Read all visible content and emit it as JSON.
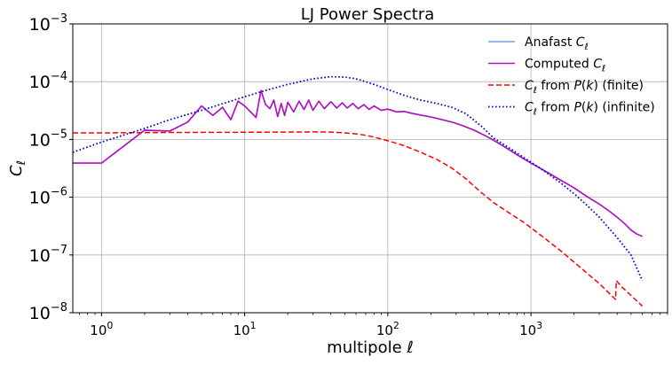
{
  "chart_data": {
    "type": "line",
    "title": "LJ Power Spectra",
    "xlabel": "multipole ℓ",
    "ylabel": "C_ℓ",
    "x_scale": "log",
    "y_scale": "log",
    "xlim": [
      0.63,
      9000
    ],
    "ylim": [
      1e-08,
      0.001
    ],
    "grid": true,
    "legend_position": "top-right",
    "x_ticks": [
      {
        "value": 1,
        "base": "10",
        "exp": "0"
      },
      {
        "value": 10,
        "base": "10",
        "exp": "1"
      },
      {
        "value": 100,
        "base": "10",
        "exp": "2"
      },
      {
        "value": 1000,
        "base": "10",
        "exp": "3"
      }
    ],
    "y_ticks": [
      {
        "value": 1e-08,
        "base": "10",
        "exp": "−8"
      },
      {
        "value": 1e-07,
        "base": "10",
        "exp": "−7"
      },
      {
        "value": 1e-06,
        "base": "10",
        "exp": "−6"
      },
      {
        "value": 1e-05,
        "base": "10",
        "exp": "−5"
      },
      {
        "value": 0.0001,
        "base": "10",
        "exp": "−4"
      },
      {
        "value": 0.001,
        "base": "10",
        "exp": "−3"
      }
    ],
    "series": [
      {
        "name": "Anafast C_ℓ",
        "color": "#6fa3dc",
        "style": "solid",
        "width": 1.5,
        "points": [
          [
            1,
            3.9e-06
          ],
          [
            2,
            1.45e-05
          ],
          [
            3,
            1.4e-05
          ],
          [
            4,
            2e-05
          ],
          [
            5,
            3.8e-05
          ],
          [
            6,
            2.6e-05
          ],
          [
            7,
            3.6e-05
          ],
          [
            8,
            2.2e-05
          ],
          [
            9,
            4.6e-05
          ],
          [
            10,
            3.8e-05
          ],
          [
            11,
            3e-05
          ],
          [
            12,
            2.4e-05
          ],
          [
            13,
            7e-05
          ],
          [
            14,
            4e-05
          ],
          [
            15,
            3.4e-05
          ],
          [
            16,
            4.8e-05
          ],
          [
            17,
            2.5e-05
          ],
          [
            18,
            4.2e-05
          ],
          [
            19,
            2.6e-05
          ],
          [
            20,
            4.4e-05
          ],
          [
            22,
            3e-05
          ],
          [
            24,
            4.6e-05
          ],
          [
            26,
            3.3e-05
          ],
          [
            28,
            4.8e-05
          ],
          [
            30,
            3.2e-05
          ],
          [
            33,
            4.6e-05
          ],
          [
            36,
            3.4e-05
          ],
          [
            40,
            4.5e-05
          ],
          [
            44,
            3.5e-05
          ],
          [
            48,
            4.3e-05
          ],
          [
            52,
            3.5e-05
          ],
          [
            57,
            4.2e-05
          ],
          [
            62,
            3.4e-05
          ],
          [
            68,
            4e-05
          ],
          [
            74,
            3.3e-05
          ],
          [
            80,
            3.8e-05
          ],
          [
            90,
            3.2e-05
          ],
          [
            100,
            3.35e-05
          ],
          [
            115,
            3e-05
          ],
          [
            130,
            3.05e-05
          ],
          [
            150,
            2.8e-05
          ],
          [
            175,
            2.6e-05
          ],
          [
            200,
            2.45e-05
          ],
          [
            240,
            2.2e-05
          ],
          [
            280,
            2e-05
          ],
          [
            330,
            1.75e-05
          ],
          [
            400,
            1.45e-05
          ],
          [
            500,
            1.1e-05
          ],
          [
            600,
            8.5e-06
          ],
          [
            700,
            6.7e-06
          ],
          [
            800,
            5.4e-06
          ],
          [
            1000,
            3.9e-06
          ],
          [
            1300,
            2.7e-06
          ],
          [
            1600,
            2e-06
          ],
          [
            2000,
            1.45e-06
          ],
          [
            2500,
            1e-06
          ],
          [
            3000,
            7.6e-07
          ],
          [
            3500,
            5.8e-07
          ],
          [
            4000,
            4.5e-07
          ],
          [
            4500,
            3.5e-07
          ],
          [
            5000,
            2.7e-07
          ],
          [
            5500,
            2.3e-07
          ],
          [
            6000,
            2.1e-07
          ]
        ]
      },
      {
        "name": "Computed C_ℓ",
        "color": "#b30fbf",
        "style": "solid",
        "width": 1.6,
        "points": [
          [
            0.63,
            3.9e-06
          ],
          [
            1,
            3.9e-06
          ],
          [
            2,
            1.45e-05
          ],
          [
            3,
            1.4e-05
          ],
          [
            4,
            2e-05
          ],
          [
            5,
            3.8e-05
          ],
          [
            6,
            2.6e-05
          ],
          [
            7,
            3.6e-05
          ],
          [
            8,
            2.2e-05
          ],
          [
            9,
            4.6e-05
          ],
          [
            10,
            3.8e-05
          ],
          [
            11,
            3e-05
          ],
          [
            12,
            2.4e-05
          ],
          [
            13,
            7e-05
          ],
          [
            14,
            4e-05
          ],
          [
            15,
            3.4e-05
          ],
          [
            16,
            4.8e-05
          ],
          [
            17,
            2.5e-05
          ],
          [
            18,
            4.2e-05
          ],
          [
            19,
            2.6e-05
          ],
          [
            20,
            4.4e-05
          ],
          [
            22,
            3e-05
          ],
          [
            24,
            4.6e-05
          ],
          [
            26,
            3.3e-05
          ],
          [
            28,
            4.8e-05
          ],
          [
            30,
            3.2e-05
          ],
          [
            33,
            4.6e-05
          ],
          [
            36,
            3.4e-05
          ],
          [
            40,
            4.5e-05
          ],
          [
            44,
            3.5e-05
          ],
          [
            48,
            4.3e-05
          ],
          [
            52,
            3.5e-05
          ],
          [
            57,
            4.2e-05
          ],
          [
            62,
            3.4e-05
          ],
          [
            68,
            4e-05
          ],
          [
            74,
            3.3e-05
          ],
          [
            80,
            3.8e-05
          ],
          [
            90,
            3.2e-05
          ],
          [
            100,
            3.35e-05
          ],
          [
            115,
            3e-05
          ],
          [
            130,
            3.05e-05
          ],
          [
            150,
            2.8e-05
          ],
          [
            175,
            2.6e-05
          ],
          [
            200,
            2.45e-05
          ],
          [
            240,
            2.2e-05
          ],
          [
            280,
            2e-05
          ],
          [
            330,
            1.75e-05
          ],
          [
            400,
            1.45e-05
          ],
          [
            500,
            1.1e-05
          ],
          [
            600,
            8.5e-06
          ],
          [
            700,
            6.7e-06
          ],
          [
            800,
            5.4e-06
          ],
          [
            1000,
            3.9e-06
          ],
          [
            1300,
            2.7e-06
          ],
          [
            1600,
            2e-06
          ],
          [
            2000,
            1.45e-06
          ],
          [
            2500,
            1e-06
          ],
          [
            3000,
            7.6e-07
          ],
          [
            3500,
            5.8e-07
          ],
          [
            4000,
            4.5e-07
          ],
          [
            4500,
            3.5e-07
          ],
          [
            5000,
            2.7e-07
          ],
          [
            5500,
            2.3e-07
          ],
          [
            6000,
            2.1e-07
          ]
        ]
      },
      {
        "name": "C_ℓ from P(k) (finite)",
        "color": "#ff0000",
        "style": "dashed",
        "width": 1.5,
        "points": [
          [
            0.63,
            1.3e-05
          ],
          [
            1,
            1.3e-05
          ],
          [
            3,
            1.32e-05
          ],
          [
            10,
            1.33e-05
          ],
          [
            20,
            1.34e-05
          ],
          [
            30,
            1.35e-05
          ],
          [
            40,
            1.34e-05
          ],
          [
            50,
            1.3e-05
          ],
          [
            60,
            1.25e-05
          ],
          [
            70,
            1.18e-05
          ],
          [
            80,
            1.1e-05
          ],
          [
            100,
            9.5e-06
          ],
          [
            130,
            7.8e-06
          ],
          [
            170,
            6e-06
          ],
          [
            220,
            4.5e-06
          ],
          [
            280,
            3.2e-06
          ],
          [
            350,
            2.1e-06
          ],
          [
            450,
            1.2e-06
          ],
          [
            550,
            8e-07
          ],
          [
            700,
            5.4e-07
          ],
          [
            900,
            3.6e-07
          ],
          [
            1200,
            2.1e-07
          ],
          [
            1600,
            1.2e-07
          ],
          [
            2000,
            7.5e-08
          ],
          [
            2500,
            4.7e-08
          ],
          [
            3000,
            3.2e-08
          ],
          [
            3500,
            2.2e-08
          ],
          [
            3900,
            1.7e-08
          ],
          [
            3950,
            3.6e-08
          ],
          [
            4300,
            2.8e-08
          ],
          [
            5000,
            2e-08
          ],
          [
            6000,
            1.3e-08
          ]
        ]
      },
      {
        "name": "C_ℓ from P(k) (infinite)",
        "color": "#0000cc",
        "style": "dotted",
        "width": 1.8,
        "points": [
          [
            0.63,
            6e-06
          ],
          [
            1,
            9e-06
          ],
          [
            2,
            1.55e-05
          ],
          [
            3,
            2.2e-05
          ],
          [
            5,
            3.2e-05
          ],
          [
            8,
            4.6e-05
          ],
          [
            10,
            5.5e-05
          ],
          [
            15,
            7.4e-05
          ],
          [
            20,
            9e-05
          ],
          [
            30,
            0.000112
          ],
          [
            40,
            0.000122
          ],
          [
            50,
            0.00012
          ],
          [
            60,
            0.000112
          ],
          [
            70,
            0.0001
          ],
          [
            80,
            9e-05
          ],
          [
            100,
            7.3e-05
          ],
          [
            130,
            5.8e-05
          ],
          [
            170,
            4.8e-05
          ],
          [
            220,
            4.2e-05
          ],
          [
            280,
            3.6e-05
          ],
          [
            350,
            2.8e-05
          ],
          [
            450,
            1.7e-05
          ],
          [
            550,
            1.05e-05
          ],
          [
            700,
            7.2e-06
          ],
          [
            900,
            4.8e-06
          ],
          [
            1200,
            3e-06
          ],
          [
            1600,
            1.8e-06
          ],
          [
            2000,
            1.15e-06
          ],
          [
            2500,
            7e-07
          ],
          [
            3000,
            4.5e-07
          ],
          [
            4000,
            2e-07
          ],
          [
            5000,
            1e-07
          ],
          [
            6000,
            3.6e-08
          ]
        ]
      }
    ]
  }
}
